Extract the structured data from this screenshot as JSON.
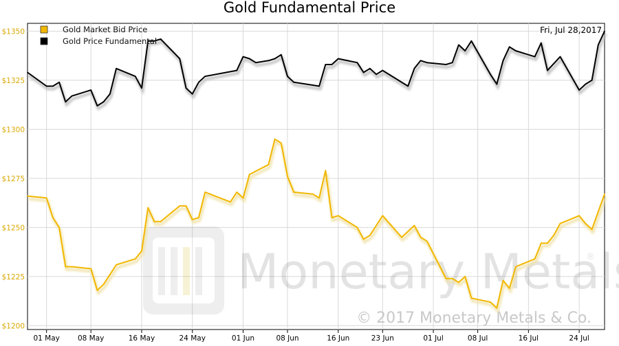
{
  "chart_data": {
    "type": "line",
    "title": "Gold Fundamental Price",
    "date_label": "Fri, Jul 28,2017",
    "watermark": "Monetary Metals",
    "watermark_reg": "®",
    "copyright": "© 2017 Monetary Metals & Co.",
    "ylim": [
      1198,
      1354
    ],
    "yticks": [
      1200,
      1225,
      1250,
      1275,
      1300,
      1325,
      1350
    ],
    "ytick_labels": [
      "$1200",
      "$1225",
      "$1250",
      "$1275",
      "$1300",
      "$1325",
      "$1350"
    ],
    "xlim": [
      "2017-04-28",
      "2017-07-28"
    ],
    "xticks": [
      {
        "date": "2017-05-01",
        "label": "01 May"
      },
      {
        "date": "2017-05-08",
        "label": "08 May"
      },
      {
        "date": "2017-05-16",
        "label": "16 May"
      },
      {
        "date": "2017-05-24",
        "label": "24 May"
      },
      {
        "date": "2017-06-01",
        "label": "01 Jun"
      },
      {
        "date": "2017-06-08",
        "label": "08 Jun"
      },
      {
        "date": "2017-06-16",
        "label": "16 Jun"
      },
      {
        "date": "2017-06-23",
        "label": "23 Jun"
      },
      {
        "date": "2017-07-01",
        "label": "01 Jul"
      },
      {
        "date": "2017-07-08",
        "label": "08 Jul"
      },
      {
        "date": "2017-07-16",
        "label": "16 Jul"
      },
      {
        "date": "2017-07-24",
        "label": "24 Jul"
      }
    ],
    "legend_position": "top-left",
    "grid": true,
    "series": [
      {
        "name": "Gold Market Bid Price",
        "color": "#f2b700",
        "points": [
          [
            "2017-04-28",
            1266
          ],
          [
            "2017-05-01",
            1265
          ],
          [
            "2017-05-02",
            1255
          ],
          [
            "2017-05-03",
            1250
          ],
          [
            "2017-05-04",
            1230
          ],
          [
            "2017-05-05",
            1230
          ],
          [
            "2017-05-08",
            1229
          ],
          [
            "2017-05-09",
            1218
          ],
          [
            "2017-05-10",
            1221
          ],
          [
            "2017-05-12",
            1231
          ],
          [
            "2017-05-15",
            1234
          ],
          [
            "2017-05-16",
            1238
          ],
          [
            "2017-05-17",
            1260
          ],
          [
            "2017-05-18",
            1253
          ],
          [
            "2017-05-19",
            1253
          ],
          [
            "2017-05-22",
            1261
          ],
          [
            "2017-05-23",
            1261
          ],
          [
            "2017-05-24",
            1254
          ],
          [
            "2017-05-25",
            1255
          ],
          [
            "2017-05-26",
            1268
          ],
          [
            "2017-05-30",
            1263
          ],
          [
            "2017-05-31",
            1268
          ],
          [
            "2017-06-01",
            1265
          ],
          [
            "2017-06-02",
            1277
          ],
          [
            "2017-06-05",
            1282
          ],
          [
            "2017-06-06",
            1295
          ],
          [
            "2017-06-07",
            1293
          ],
          [
            "2017-06-08",
            1276
          ],
          [
            "2017-06-09",
            1268
          ],
          [
            "2017-06-12",
            1267
          ],
          [
            "2017-06-13",
            1265
          ],
          [
            "2017-06-14",
            1279
          ],
          [
            "2017-06-15",
            1255
          ],
          [
            "2017-06-16",
            1256
          ],
          [
            "2017-06-19",
            1250
          ],
          [
            "2017-06-20",
            1244
          ],
          [
            "2017-06-21",
            1246
          ],
          [
            "2017-06-23",
            1256
          ],
          [
            "2017-06-26",
            1245
          ],
          [
            "2017-06-27",
            1248
          ],
          [
            "2017-06-28",
            1251
          ],
          [
            "2017-06-29",
            1245
          ],
          [
            "2017-06-30",
            1243
          ],
          [
            "2017-07-03",
            1224
          ],
          [
            "2017-07-04",
            1224
          ],
          [
            "2017-07-05",
            1222
          ],
          [
            "2017-07-06",
            1225
          ],
          [
            "2017-07-07",
            1214
          ],
          [
            "2017-07-10",
            1212
          ],
          [
            "2017-07-11",
            1209
          ],
          [
            "2017-07-12",
            1223
          ],
          [
            "2017-07-13",
            1219
          ],
          [
            "2017-07-14",
            1230
          ],
          [
            "2017-07-17",
            1234
          ],
          [
            "2017-07-18",
            1242
          ],
          [
            "2017-07-19",
            1242
          ],
          [
            "2017-07-20",
            1246
          ],
          [
            "2017-07-21",
            1252
          ],
          [
            "2017-07-24",
            1256
          ],
          [
            "2017-07-25",
            1252
          ],
          [
            "2017-07-26",
            1249
          ],
          [
            "2017-07-28",
            1267
          ]
        ]
      },
      {
        "name": "Gold Price Fundamental",
        "color": "#000000",
        "points": [
          [
            "2017-04-28",
            1329
          ],
          [
            "2017-05-01",
            1322
          ],
          [
            "2017-05-02",
            1322
          ],
          [
            "2017-05-03",
            1324
          ],
          [
            "2017-05-04",
            1314
          ],
          [
            "2017-05-05",
            1317
          ],
          [
            "2017-05-08",
            1320
          ],
          [
            "2017-05-09",
            1312
          ],
          [
            "2017-05-10",
            1314
          ],
          [
            "2017-05-11",
            1318
          ],
          [
            "2017-05-12",
            1331
          ],
          [
            "2017-05-15",
            1327
          ],
          [
            "2017-05-16",
            1321
          ],
          [
            "2017-05-17",
            1345
          ],
          [
            "2017-05-18",
            1345
          ],
          [
            "2017-05-19",
            1346
          ],
          [
            "2017-05-22",
            1336
          ],
          [
            "2017-05-23",
            1321
          ],
          [
            "2017-05-24",
            1318
          ],
          [
            "2017-05-25",
            1324
          ],
          [
            "2017-05-26",
            1327
          ],
          [
            "2017-05-31",
            1330
          ],
          [
            "2017-06-01",
            1337
          ],
          [
            "2017-06-02",
            1336
          ],
          [
            "2017-06-03",
            1334
          ],
          [
            "2017-06-05",
            1335
          ],
          [
            "2017-06-06",
            1336
          ],
          [
            "2017-06-07",
            1338
          ],
          [
            "2017-06-08",
            1327
          ],
          [
            "2017-06-09",
            1324
          ],
          [
            "2017-06-13",
            1322
          ],
          [
            "2017-06-14",
            1333
          ],
          [
            "2017-06-15",
            1333
          ],
          [
            "2017-06-16",
            1336
          ],
          [
            "2017-06-19",
            1334
          ],
          [
            "2017-06-20",
            1329
          ],
          [
            "2017-06-21",
            1331
          ],
          [
            "2017-06-22",
            1328
          ],
          [
            "2017-06-23",
            1330
          ],
          [
            "2017-06-27",
            1322
          ],
          [
            "2017-06-28",
            1331
          ],
          [
            "2017-06-29",
            1335
          ],
          [
            "2017-06-30",
            1334
          ],
          [
            "2017-07-03",
            1333
          ],
          [
            "2017-07-04",
            1334
          ],
          [
            "2017-07-05",
            1343
          ],
          [
            "2017-07-06",
            1340
          ],
          [
            "2017-07-07",
            1345
          ],
          [
            "2017-07-10",
            1328
          ],
          [
            "2017-07-11",
            1323
          ],
          [
            "2017-07-12",
            1335
          ],
          [
            "2017-07-13",
            1342
          ],
          [
            "2017-07-14",
            1340
          ],
          [
            "2017-07-17",
            1337
          ],
          [
            "2017-07-18",
            1344
          ],
          [
            "2017-07-19",
            1330
          ],
          [
            "2017-07-21",
            1337
          ],
          [
            "2017-07-24",
            1320
          ],
          [
            "2017-07-25",
            1323
          ],
          [
            "2017-07-26",
            1325
          ],
          [
            "2017-07-27",
            1343
          ],
          [
            "2017-07-28",
            1350
          ]
        ]
      }
    ]
  }
}
